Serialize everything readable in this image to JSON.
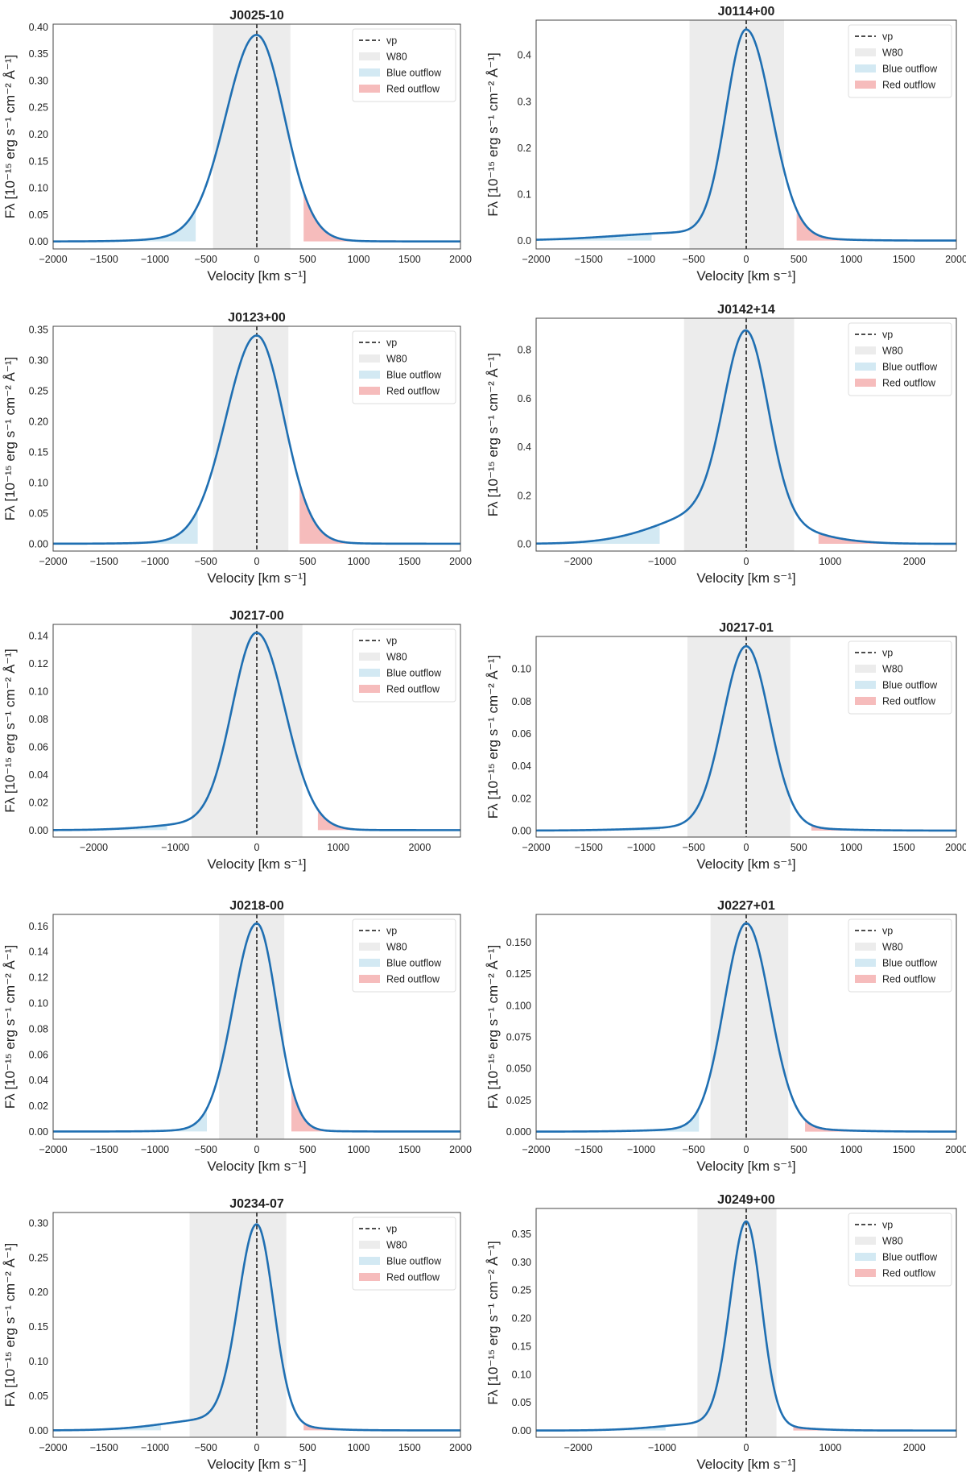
{
  "figure": {
    "colors": {
      "curve": "#1f6fb2",
      "vp_line": "#111111",
      "w80_band": "#ececec",
      "blue_outflow": "#d3e9f3",
      "red_outflow": "#f6bcbc",
      "frame": "#444444",
      "legend_border": "#dddddd"
    },
    "xlabel": "Velocity [km s⁻¹]",
    "ylabel": "Fλ [10⁻¹⁵ erg s⁻¹ cm⁻² Å⁻¹]",
    "legend": {
      "vp": "vp",
      "w80": "W80",
      "blue": "Blue outflow",
      "red": "Red outflow"
    }
  },
  "chart_data": [
    {
      "type": "line",
      "title": "J0025-10",
      "xlim": [
        -2000,
        2000
      ],
      "ylim": [
        -0.014,
        0.405
      ],
      "xticks": [
        -2000,
        -1500,
        -1000,
        -500,
        0,
        500,
        1000,
        1500,
        2000
      ],
      "yticks": [
        0.0,
        0.05,
        0.1,
        0.15,
        0.2,
        0.25,
        0.3,
        0.35,
        0.4
      ],
      "ytick_labels": [
        "0.00",
        "0.05",
        "0.10",
        "0.15",
        "0.20",
        "0.25",
        "0.30",
        "0.35",
        "0.40"
      ],
      "peak_flux": 0.385,
      "vp": 0,
      "w80": [
        -430,
        330
      ],
      "blue_outflow": [
        -2000,
        -600
      ],
      "red_outflow": [
        460,
        2000
      ],
      "profile": {
        "core_sigma_left": 300,
        "core_sigma_right": 270,
        "wing_amp": 0.03,
        "wing_center": -250,
        "wing_sigma": 520
      }
    },
    {
      "type": "line",
      "title": "J0114+00",
      "xlim": [
        -2000,
        2000
      ],
      "ylim": [
        -0.018,
        0.475
      ],
      "xticks": [
        -2000,
        -1500,
        -1000,
        -500,
        0,
        500,
        1000,
        1500,
        2000
      ],
      "yticks": [
        0.0,
        0.1,
        0.2,
        0.3,
        0.4
      ],
      "ytick_labels": [
        "0.0",
        "0.1",
        "0.2",
        "0.3",
        "0.4"
      ],
      "peak_flux": 0.455,
      "vp": 0,
      "w80": [
        -540,
        360
      ],
      "blue_outflow": [
        -2000,
        -900
      ],
      "red_outflow": [
        480,
        2000
      ],
      "profile": {
        "core_sigma_left": 190,
        "core_sigma_right": 240,
        "wing_amp": 0.04,
        "wing_center": -500,
        "wing_sigma": 700
      }
    },
    {
      "type": "line",
      "title": "J0123+00",
      "xlim": [
        -2000,
        2000
      ],
      "ylim": [
        -0.012,
        0.355
      ],
      "xticks": [
        -2000,
        -1500,
        -1000,
        -500,
        0,
        500,
        1000,
        1500,
        2000
      ],
      "yticks": [
        0.0,
        0.05,
        0.1,
        0.15,
        0.2,
        0.25,
        0.3,
        0.35
      ],
      "ytick_labels": [
        "0.00",
        "0.05",
        "0.10",
        "0.15",
        "0.20",
        "0.25",
        "0.30",
        "0.35"
      ],
      "peak_flux": 0.34,
      "vp": 0,
      "w80": [
        -430,
        310
      ],
      "blue_outflow": [
        -2000,
        -580
      ],
      "red_outflow": [
        420,
        2000
      ],
      "profile": {
        "core_sigma_left": 300,
        "core_sigma_right": 265,
        "wing_amp": 0.015,
        "wing_center": -200,
        "wing_sigma": 550
      }
    },
    {
      "type": "line",
      "title": "J0142+14",
      "xlim": [
        -2500,
        2500
      ],
      "ylim": [
        -0.03,
        0.93
      ],
      "xticks": [
        -2000,
        -1000,
        0,
        1000,
        2000
      ],
      "yticks": [
        0.0,
        0.2,
        0.4,
        0.6,
        0.8
      ],
      "ytick_labels": [
        "0.0",
        "0.2",
        "0.4",
        "0.6",
        "0.8"
      ],
      "peak_flux": 0.88,
      "vp": 0,
      "w80": [
        -740,
        570
      ],
      "blue_outflow": [
        -2500,
        -1030
      ],
      "red_outflow": [
        860,
        2500
      ],
      "profile": {
        "core_sigma_left": 260,
        "core_sigma_right": 260,
        "wing_amp": 0.2,
        "wing_center": -250,
        "wing_sigma": 700
      }
    },
    {
      "type": "line",
      "title": "J0217-00",
      "xlim": [
        -2500,
        2500
      ],
      "ylim": [
        -0.005,
        0.148
      ],
      "xticks": [
        -2000,
        -1000,
        0,
        1000,
        2000
      ],
      "yticks": [
        0.0,
        0.02,
        0.04,
        0.06,
        0.08,
        0.1,
        0.12,
        0.14
      ],
      "ytick_labels": [
        "0.00",
        "0.02",
        "0.04",
        "0.06",
        "0.08",
        "0.10",
        "0.12",
        "0.14"
      ],
      "peak_flux": 0.142,
      "vp": 0,
      "w80": [
        -800,
        560
      ],
      "blue_outflow": [
        -2500,
        -1100
      ],
      "red_outflow": [
        750,
        2500
      ],
      "profile": {
        "core_sigma_left": 300,
        "core_sigma_right": 350,
        "wing_amp": 0.04,
        "wing_center": -500,
        "wing_sigma": 650
      }
    },
    {
      "type": "line",
      "title": "J0217-01",
      "xlim": [
        -2000,
        2000
      ],
      "ylim": [
        -0.004,
        0.12
      ],
      "xticks": [
        -2000,
        -1500,
        -1000,
        -500,
        0,
        500,
        1000,
        1500,
        2000
      ],
      "yticks": [
        0.0,
        0.02,
        0.04,
        0.06,
        0.08,
        0.1
      ],
      "ytick_labels": [
        "0.00",
        "0.02",
        "0.04",
        "0.06",
        "0.08",
        "0.10"
      ],
      "peak_flux": 0.114,
      "vp": 0,
      "w80": [
        -560,
        420
      ],
      "blue_outflow": [
        -2000,
        -820
      ],
      "red_outflow": [
        620,
        2000
      ],
      "profile": {
        "core_sigma_left": 220,
        "core_sigma_right": 220,
        "wing_amp": 0.025,
        "wing_center": -150,
        "wing_sigma": 650
      }
    },
    {
      "type": "line",
      "title": "J0218-00",
      "xlim": [
        -2000,
        2000
      ],
      "ylim": [
        -0.006,
        0.169
      ],
      "xticks": [
        -2000,
        -1500,
        -1000,
        -500,
        0,
        500,
        1000,
        1500,
        2000
      ],
      "yticks": [
        0.0,
        0.02,
        0.04,
        0.06,
        0.08,
        0.1,
        0.12,
        0.14,
        0.16
      ],
      "ytick_labels": [
        "0.00",
        "0.02",
        "0.04",
        "0.06",
        "0.08",
        "0.10",
        "0.12",
        "0.14",
        "0.16"
      ],
      "peak_flux": 0.162,
      "vp": 0,
      "w80": [
        -370,
        270
      ],
      "blue_outflow": [
        -2000,
        -490
      ],
      "red_outflow": [
        340,
        2000
      ],
      "profile": {
        "core_sigma_left": 230,
        "core_sigma_right": 195,
        "wing_amp": 0.012,
        "wing_center": -150,
        "wing_sigma": 450
      }
    },
    {
      "type": "line",
      "title": "J0227+01",
      "xlim": [
        -2000,
        2000
      ],
      "ylim": [
        -0.006,
        0.172
      ],
      "xticks": [
        -2000,
        -1500,
        -1000,
        -500,
        0,
        500,
        1000,
        1500,
        2000
      ],
      "yticks": [
        0.0,
        0.025,
        0.05,
        0.075,
        0.1,
        0.125,
        0.15
      ],
      "ytick_labels": [
        "0.000",
        "0.025",
        "0.050",
        "0.075",
        "0.100",
        "0.125",
        "0.150"
      ],
      "peak_flux": 0.165,
      "vp": 0,
      "w80": [
        -340,
        400
      ],
      "blue_outflow": [
        -2000,
        -450
      ],
      "red_outflow": [
        560,
        2000
      ],
      "profile": {
        "core_sigma_left": 210,
        "core_sigma_right": 225,
        "wing_amp": 0.02,
        "wing_center": 0,
        "wing_sigma": 600
      }
    },
    {
      "type": "line",
      "title": "J0234-07",
      "xlim": [
        -2000,
        2000
      ],
      "ylim": [
        -0.01,
        0.315
      ],
      "xticks": [
        -2000,
        -1500,
        -1000,
        -500,
        0,
        500,
        1000,
        1500,
        2000
      ],
      "yticks": [
        0.0,
        0.05,
        0.1,
        0.15,
        0.2,
        0.25,
        0.3
      ],
      "ytick_labels": [
        "0.00",
        "0.05",
        "0.10",
        "0.15",
        "0.20",
        "0.25",
        "0.30"
      ],
      "peak_flux": 0.298,
      "vp": 0,
      "w80": [
        -660,
        290
      ],
      "blue_outflow": [
        -2000,
        -940
      ],
      "red_outflow": [
        460,
        2000
      ],
      "profile": {
        "core_sigma_left": 180,
        "core_sigma_right": 165,
        "wing_amp": 0.06,
        "wing_center": -350,
        "wing_sigma": 520
      }
    },
    {
      "type": "line",
      "title": "J0249+00",
      "xlim": [
        -2500,
        2500
      ],
      "ylim": [
        -0.012,
        0.395
      ],
      "xticks": [
        -2000,
        -1000,
        0,
        1000,
        2000
      ],
      "yticks": [
        0.0,
        0.05,
        0.1,
        0.15,
        0.2,
        0.25,
        0.3,
        0.35
      ],
      "ytick_labels": [
        "0.00",
        "0.05",
        "0.10",
        "0.15",
        "0.20",
        "0.25",
        "0.30",
        "0.35"
      ],
      "peak_flux": 0.372,
      "vp": 0,
      "w80": [
        -580,
        360
      ],
      "blue_outflow": [
        -2500,
        -960
      ],
      "red_outflow": [
        560,
        2500
      ],
      "profile": {
        "core_sigma_left": 190,
        "core_sigma_right": 180,
        "wing_amp": 0.04,
        "wing_center": -300,
        "wing_sigma": 620
      }
    }
  ]
}
